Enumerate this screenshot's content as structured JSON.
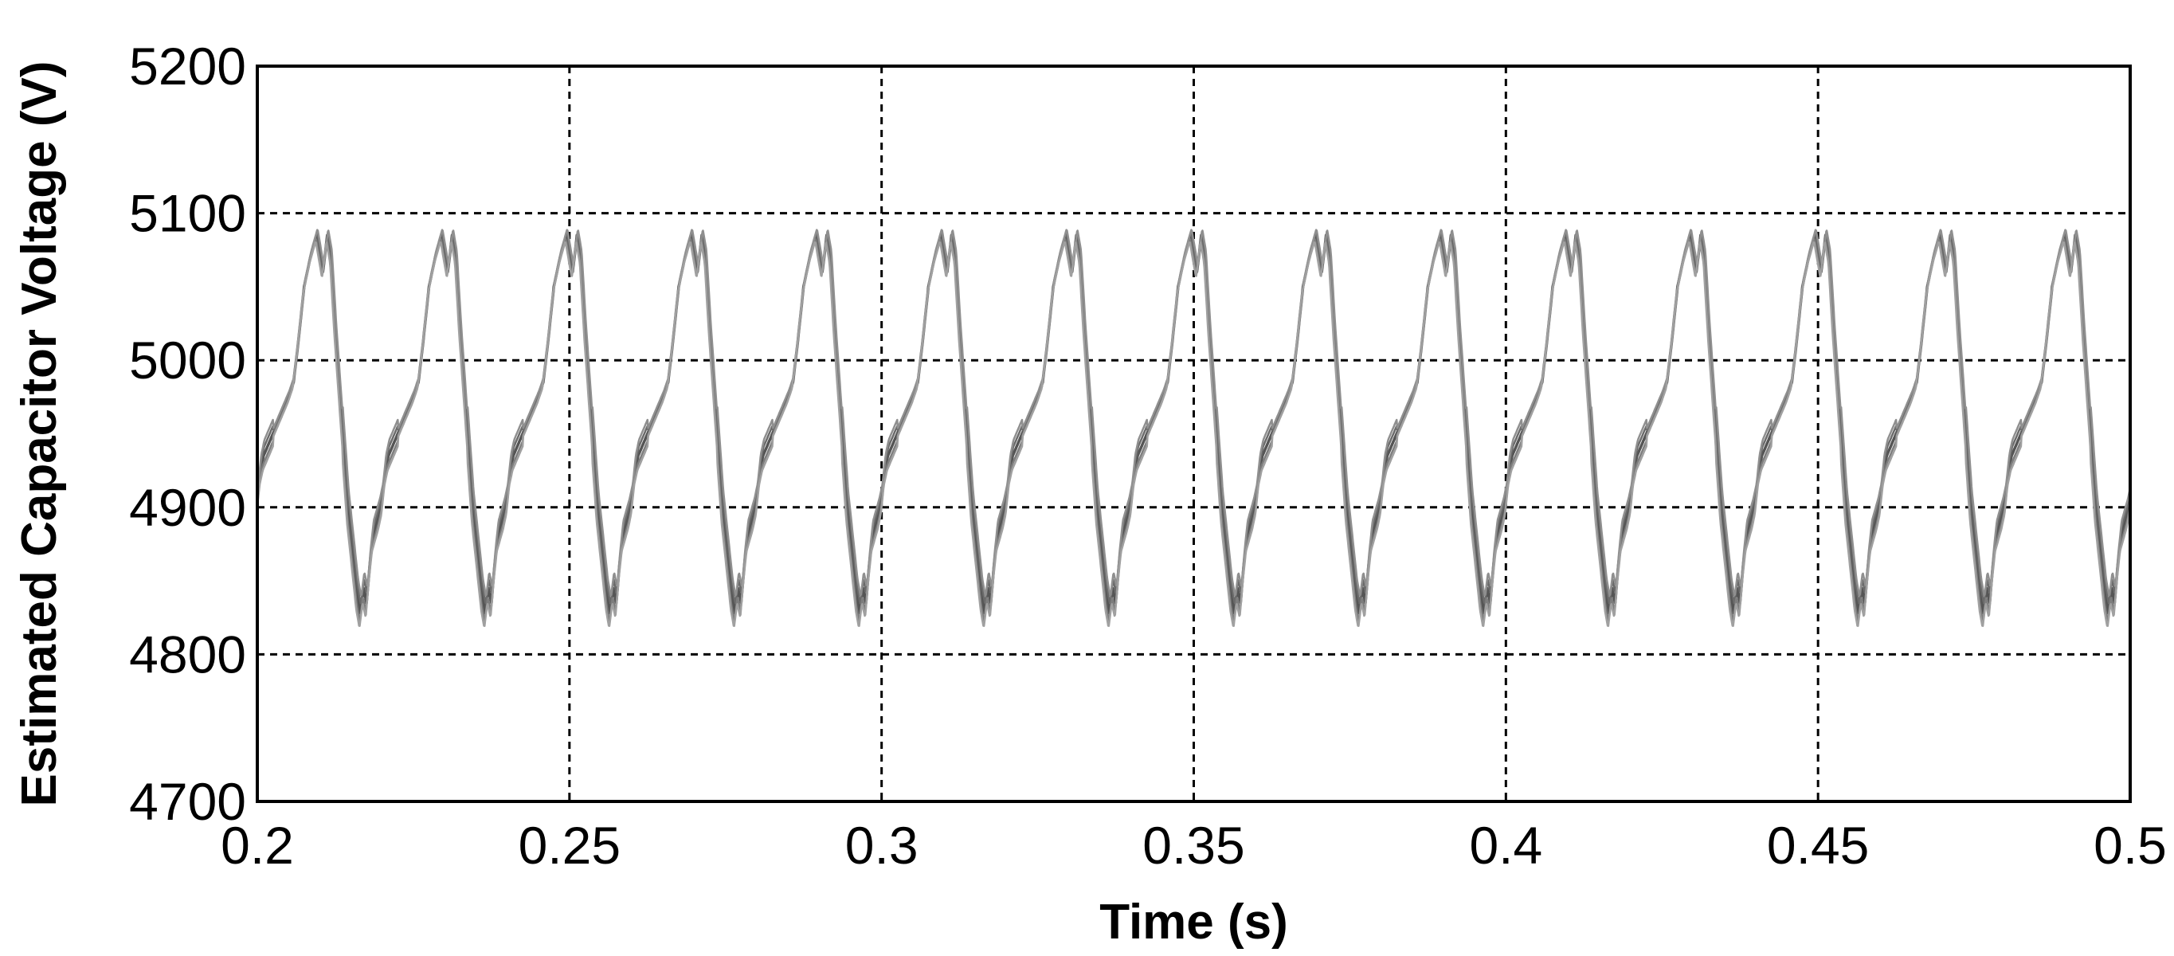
{
  "chart_data": {
    "type": "line",
    "title": "",
    "xlabel": "Time (s)",
    "ylabel": "Estimated Capacitor Voltage (V)",
    "xlim": [
      0.2,
      0.5
    ],
    "ylim": [
      4700,
      5200
    ],
    "xticks": [
      0.2,
      0.25,
      0.3,
      0.35,
      0.4,
      0.45,
      0.5
    ],
    "xtick_labels": [
      "0.2",
      "0.25",
      "0.3",
      "0.35",
      "0.4",
      "0.45",
      "0.5"
    ],
    "yticks": [
      4700,
      4800,
      4900,
      5000,
      5100,
      5200
    ],
    "ytick_labels": [
      "4700",
      "4800",
      "4900",
      "5000",
      "5100",
      "5200"
    ],
    "grid": true,
    "legend": "none",
    "period_s": 0.02,
    "waveform_keypoints": {
      "t_offset_in_period": [
        0,
        0.0005,
        0.001,
        0.002,
        0.003,
        0.004,
        0.005,
        0.0058,
        0.0065,
        0.0075,
        0.0085,
        0.0095,
        0.0105,
        0.0108,
        0.0112,
        0.0118,
        0.0125,
        0.0135,
        0.0145,
        0.0155,
        0.016,
        0.0165,
        0.017,
        0.0175,
        0.018,
        0.0185,
        0.0195,
        0.02
      ],
      "v": [
        4905,
        4925,
        4935,
        4945,
        4955,
        4965,
        4975,
        4985,
        5010,
        5050,
        5070,
        5085,
        5060,
        5070,
        5085,
        5070,
        5020,
        4960,
        4900,
        4860,
        4840,
        4828,
        4845,
        4835,
        4860,
        4880,
        4895,
        4905
      ]
    },
    "series": [
      {
        "phase_shift_s": 0.0,
        "offset_v": 0,
        "color": "#555555"
      },
      {
        "phase_shift_s": 8e-05,
        "offset_v": 6,
        "color": "#6a6a6a"
      },
      {
        "phase_shift_s": -8e-05,
        "offset_v": -6,
        "color": "#7d7d7d"
      },
      {
        "phase_shift_s": 0.00015,
        "offset_v": 11,
        "color": "#8f8f8f"
      },
      {
        "phase_shift_s": -0.00014,
        "offset_v": -10,
        "color": "#a0a0a0"
      }
    ]
  }
}
